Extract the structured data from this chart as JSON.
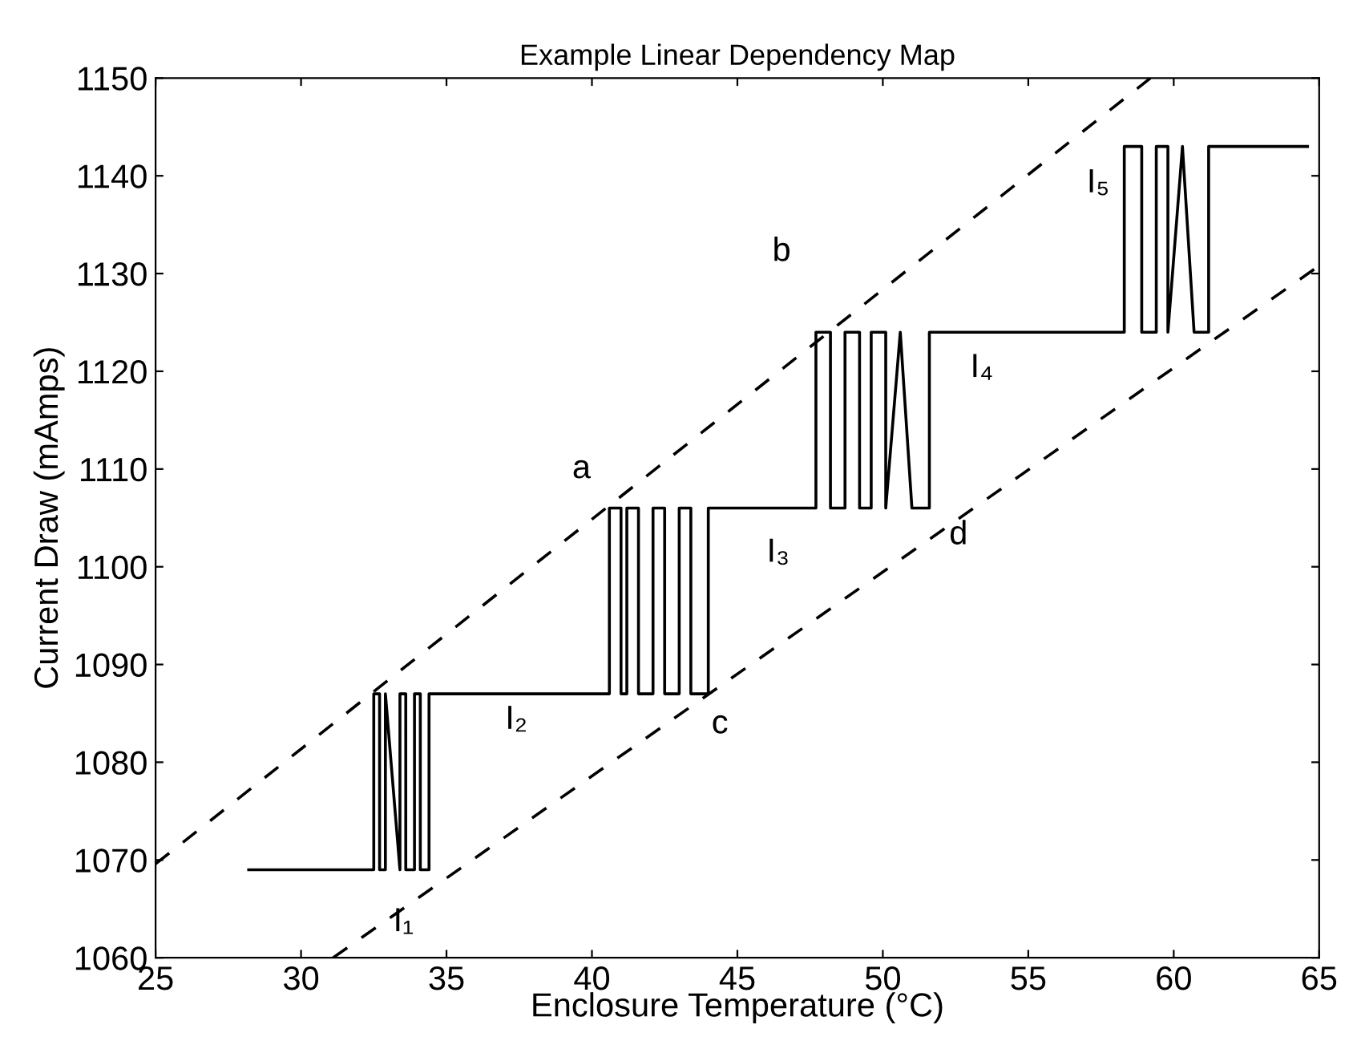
{
  "chart_data": {
    "type": "line",
    "title": "Example Linear Dependency Map",
    "xlabel": "Enclosure Temperature (°C)",
    "ylabel": "Current Draw (mAmps)",
    "xlim": [
      25,
      65
    ],
    "ylim": [
      1060,
      1150
    ],
    "xticks": [
      25,
      30,
      35,
      40,
      45,
      50,
      55,
      60,
      65
    ],
    "yticks": [
      1060,
      1070,
      1080,
      1090,
      1100,
      1110,
      1120,
      1130,
      1140,
      1150
    ],
    "grid": false,
    "legend": false,
    "marker": "none",
    "series": [
      {
        "color": "#000000",
        "line_style": "solid",
        "x": [
          28.2,
          32.5,
          32.5,
          32.7,
          32.7,
          32.9,
          32.9,
          33.4,
          33.4,
          33.6,
          33.6,
          33.9,
          33.9,
          34.1,
          34.1,
          34.4,
          34.4,
          40.6,
          40.6,
          41.0,
          41.0,
          41.2,
          41.2,
          41.6,
          41.6,
          42.1,
          42.1,
          42.5,
          42.5,
          43.0,
          43.0,
          43.4,
          43.4,
          44.0,
          44.0,
          47.7,
          47.7,
          48.2,
          48.2,
          48.7,
          48.7,
          49.2,
          49.2,
          49.6,
          49.6,
          50.1,
          50.1,
          50.6,
          51.0,
          51.6,
          51.6,
          58.3,
          58.3,
          58.9,
          58.9,
          59.4,
          59.4,
          59.8,
          59.8,
          60.3,
          60.7,
          61.2,
          61.2,
          64.6
        ],
        "values": [
          1069,
          1069,
          1087,
          1087,
          1069,
          1069,
          1087,
          1069,
          1087,
          1087,
          1069,
          1069,
          1087,
          1087,
          1069,
          1069,
          1087,
          1087,
          1106,
          1106,
          1087,
          1087,
          1106,
          1106,
          1087,
          1087,
          1106,
          1106,
          1087,
          1087,
          1106,
          1106,
          1087,
          1087,
          1106,
          1106,
          1124,
          1124,
          1106,
          1106,
          1124,
          1124,
          1106,
          1106,
          1124,
          1124,
          1106,
          1124,
          1106,
          1106,
          1124,
          1124,
          1143,
          1143,
          1124,
          1124,
          1143,
          1143,
          1124,
          1143,
          1124,
          1124,
          1143,
          1143
        ]
      },
      {
        "color": "#000000",
        "line_style": "dashed",
        "x": [
          25,
          59.2
        ],
        "values": [
          1069.6,
          1150
        ]
      },
      {
        "color": "#000000",
        "line_style": "dashed",
        "x": [
          31.1,
          65
        ],
        "values": [
          1060,
          1130.8
        ]
      }
    ],
    "annotations": [
      "a",
      "b",
      "c",
      "d",
      "I₁",
      "I₂",
      "I₃",
      "I₄",
      "I₅"
    ]
  }
}
